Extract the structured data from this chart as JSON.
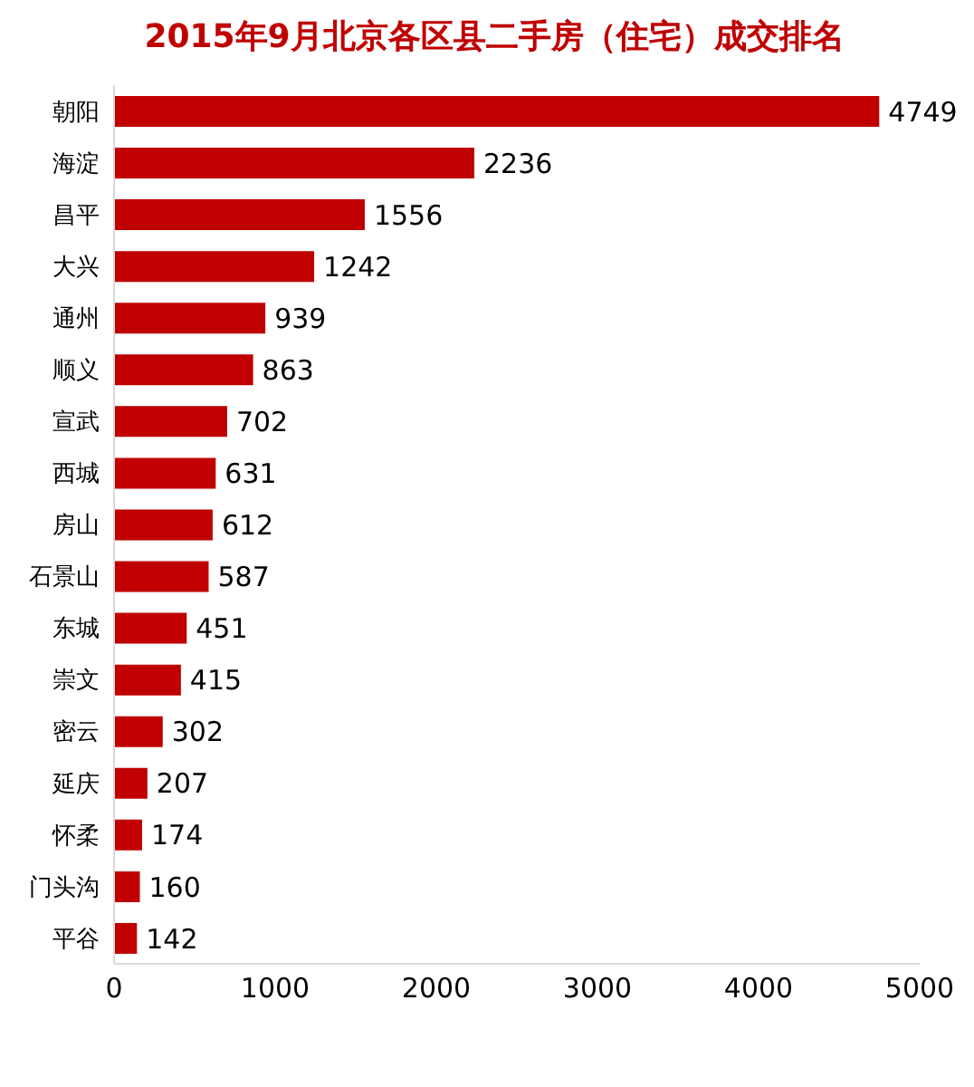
{
  "chart_data": {
    "type": "bar",
    "orientation": "horizontal",
    "title": "2015年9月北京各区县二手房（住宅）成交排名",
    "categories": [
      "朝阳",
      "海淀",
      "昌平",
      "大兴",
      "通州",
      "顺义",
      "宣武",
      "西城",
      "房山",
      "石景山",
      "东城",
      "崇文",
      "密云",
      "延庆",
      "怀柔",
      "门头沟",
      "平谷"
    ],
    "values": [
      4749,
      2236,
      1556,
      1242,
      939,
      863,
      702,
      631,
      612,
      587,
      451,
      415,
      302,
      207,
      174,
      160,
      142
    ],
    "color": "#c00000",
    "xlim": [
      0,
      5000
    ],
    "xticks": [
      0,
      1000,
      2000,
      3000,
      4000,
      5000
    ],
    "grid": false,
    "data_labels": true
  }
}
